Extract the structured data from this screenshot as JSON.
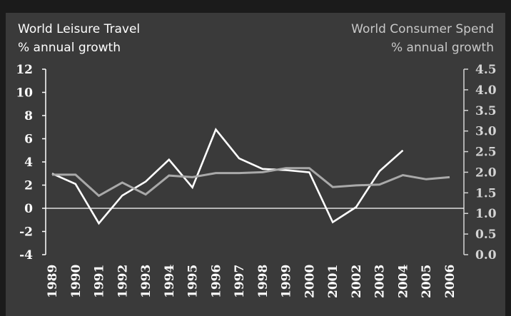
{
  "colors": {
    "background": "#3a3a3a",
    "frame": "#1b1b1b",
    "travel_line": "#ffffff",
    "spend_line": "#a9a9a9",
    "left_text": "#ffffff",
    "right_text": "#c8c8c8"
  },
  "chart_data": {
    "type": "line",
    "title_left": "World Leisure Travel",
    "subtitle_left": "% annual growth",
    "title_right": "World Consumer Spend",
    "subtitle_right": "% annual growth",
    "x": [
      "1989",
      "1990",
      "1991",
      "1992",
      "1993",
      "1994",
      "1995",
      "1996",
      "1997",
      "1998",
      "1999",
      "2000",
      "2001",
      "2002",
      "2003",
      "2004",
      "2005",
      "2006"
    ],
    "y_left": {
      "ylim": [
        -4,
        12
      ],
      "ticks": [
        "12",
        "10",
        "8",
        "6",
        "4",
        "2",
        "0",
        "-2",
        "-4"
      ],
      "tick_values": [
        12,
        10,
        8,
        6,
        4,
        2,
        0,
        -2,
        -4
      ]
    },
    "y_right": {
      "ylim": [
        0,
        4.5
      ],
      "ticks": [
        "4.5",
        "4.0",
        "3.5",
        "3.0",
        "2.5",
        "2.0",
        "1.5",
        "1.0",
        "0.5",
        "0.0"
      ],
      "tick_values": [
        4.5,
        4.0,
        3.5,
        3.0,
        2.5,
        2.0,
        1.5,
        1.0,
        0.5,
        0.0
      ]
    },
    "zero_line": true,
    "series": [
      {
        "axis": "left",
        "color": "#ffffff",
        "values": [
          3.0,
          2.1,
          -1.3,
          1.1,
          2.3,
          4.2,
          1.8,
          6.8,
          4.3,
          3.4,
          3.3,
          3.1,
          -1.2,
          0.1,
          3.2,
          5.0,
          null,
          null
        ]
      },
      {
        "axis": "right",
        "color": "#a9a9a9",
        "values": [
          1.94,
          1.94,
          1.43,
          1.75,
          1.46,
          1.92,
          1.88,
          1.98,
          1.98,
          2.0,
          2.1,
          2.1,
          1.64,
          1.68,
          1.7,
          1.93,
          1.83,
          1.88
        ]
      }
    ]
  }
}
